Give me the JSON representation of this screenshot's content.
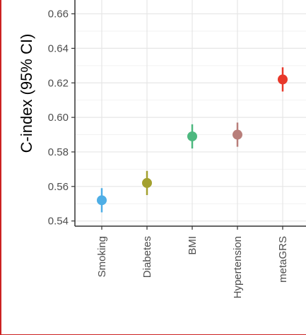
{
  "chart_data": {
    "type": "scatter",
    "subtype": "point-range",
    "ylabel": "C-index (95% CI)",
    "ylim": [
      0.537,
      0.668
    ],
    "yticks": [
      0.54,
      0.56,
      0.58,
      0.6,
      0.62,
      0.64,
      0.66
    ],
    "ytick_labels": [
      "0.54",
      "0.56",
      "0.58",
      "0.60",
      "0.62",
      "0.64",
      "0.66"
    ],
    "categories": [
      "Smoking",
      "Diabetes",
      "BMI",
      "Hypertension",
      "metaGRS"
    ],
    "values": [
      0.552,
      0.562,
      0.589,
      0.59,
      0.622
    ],
    "ci_low": [
      0.545,
      0.555,
      0.582,
      0.583,
      0.615
    ],
    "ci_high": [
      0.559,
      0.569,
      0.596,
      0.597,
      0.629
    ],
    "colors": [
      "#4eaee6",
      "#a3a02e",
      "#4db87f",
      "#b87e7a",
      "#e8382a"
    ],
    "grid": true,
    "legend": "none"
  }
}
